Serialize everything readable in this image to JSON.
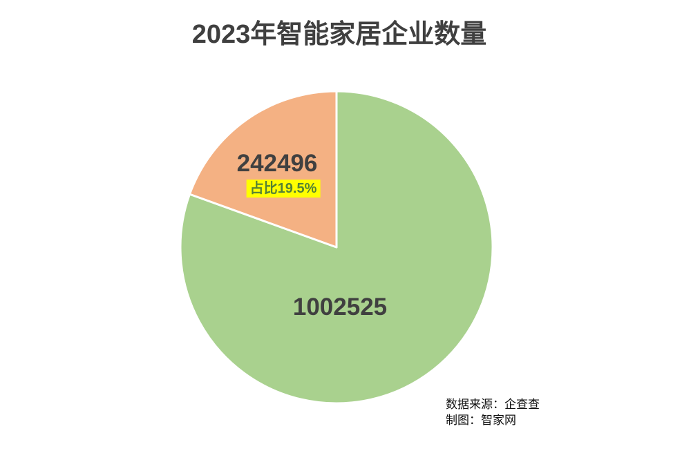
{
  "title": "2023年智能家居企业数量",
  "chart_data": {
    "type": "pie",
    "title": "2023年智能家居企业数量",
    "slices": [
      {
        "name": "green-slice",
        "value": 1002525,
        "label": "1002525",
        "color": "#A9D18E"
      },
      {
        "name": "orange-slice",
        "value": 242496,
        "label": "242496",
        "color": "#F4B183",
        "share_annotation": "占比19.5%"
      }
    ],
    "start_angle_deg": 0,
    "direction": "clockwise",
    "divider_color": "#FFFFFF",
    "legend_position": "none",
    "background": "#FFFFFF",
    "colors": {
      "title_text": "#3F3F3F",
      "value_text": "#404040",
      "annotation_bg": "#FFFF00",
      "annotation_text": "#548235"
    }
  },
  "labels": {
    "green_value": "1002525",
    "orange_value": "242496"
  },
  "annotation": {
    "text": "占比19.5%"
  },
  "source": {
    "line1": "数据来源：企查查",
    "line2": "制图：智家网"
  }
}
